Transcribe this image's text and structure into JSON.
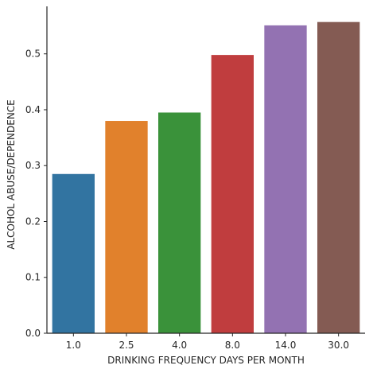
{
  "chart_data": {
    "type": "bar",
    "title": "",
    "xlabel": "DRINKING FREQUENCY DAYS PER MONTH",
    "ylabel": "ALCOHOL ABUSE/DEPENDENCE",
    "categories": [
      "1.0",
      "2.5",
      "4.0",
      "8.0",
      "14.0",
      "30.0"
    ],
    "values": [
      0.285,
      0.38,
      0.395,
      0.498,
      0.551,
      0.557
    ],
    "colors": [
      "#3274a1",
      "#e1812c",
      "#3a923a",
      "#c03d3e",
      "#9372b2",
      "#845b53"
    ],
    "ylim": [
      0,
      0.585
    ],
    "yticks": [
      0.0,
      0.1,
      0.2,
      0.3,
      0.4,
      0.5
    ],
    "ytick_labels": [
      "0.0",
      "0.1",
      "0.2",
      "0.3",
      "0.4",
      "0.5"
    ],
    "grid": false,
    "legend": "none",
    "spines": "left-bottom"
  }
}
